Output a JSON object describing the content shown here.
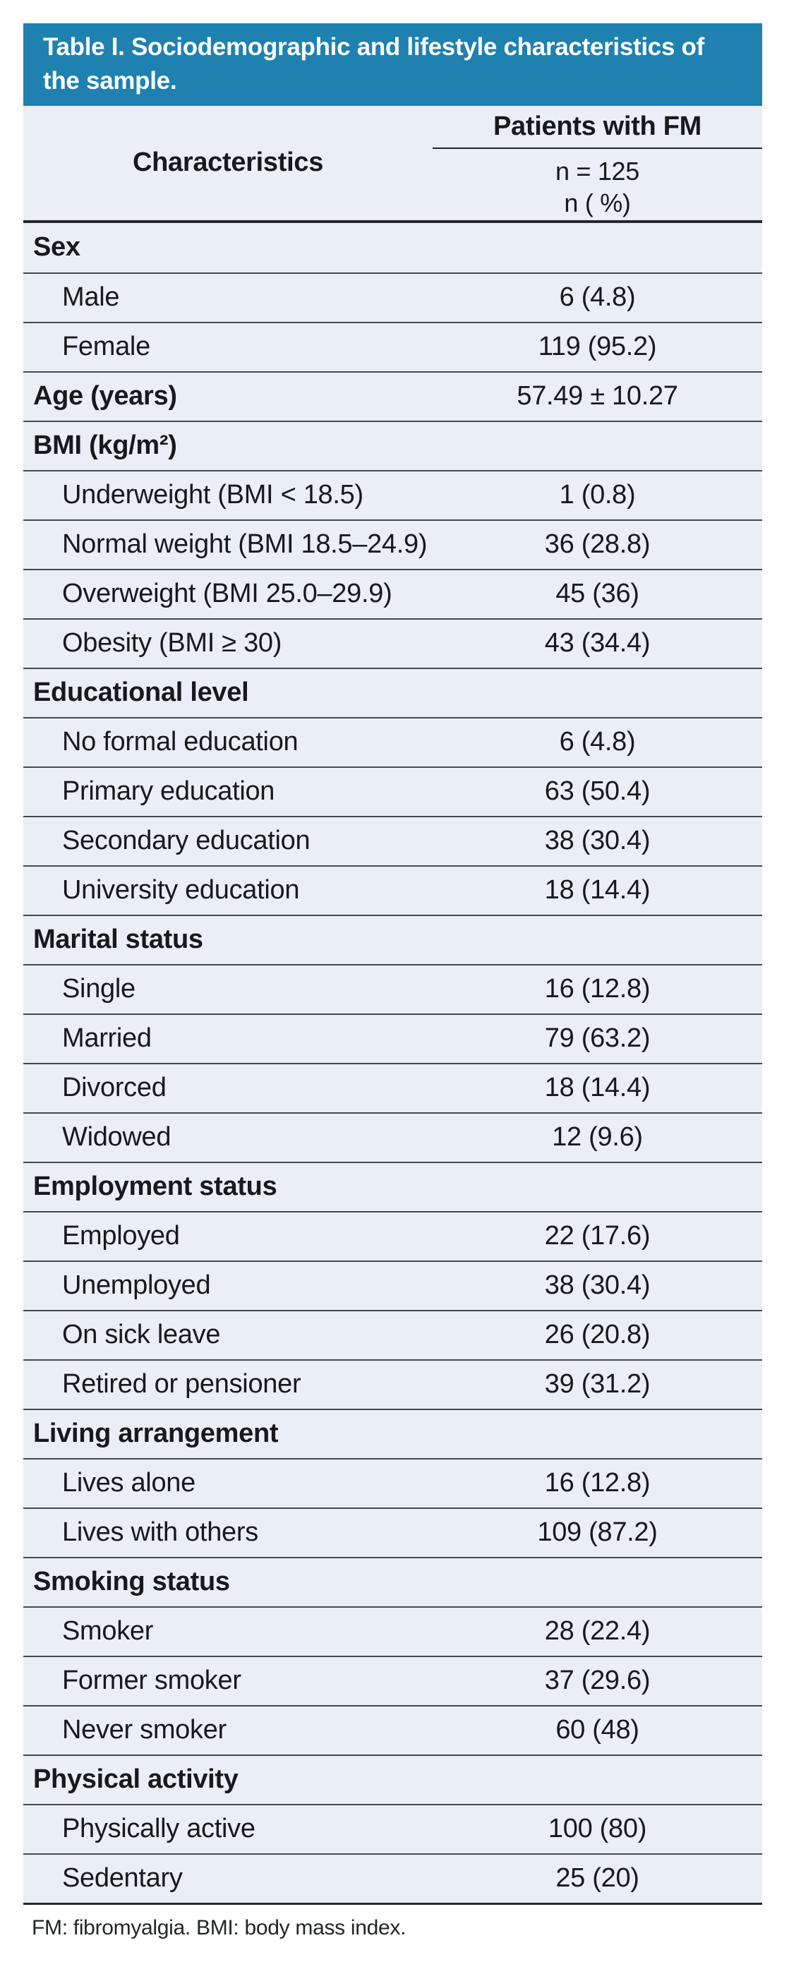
{
  "table": {
    "title": "Table I. Sociodemographic and lifestyle characteristics of the sample.",
    "header": {
      "characteristics_label": "Characteristics",
      "group_label": "Patients with FM",
      "subline1": "n = 125",
      "subline2": "n ( %)"
    },
    "rows": [
      {
        "type": "section",
        "label": "Sex",
        "value": ""
      },
      {
        "type": "data",
        "label": "Male",
        "value": "6 (4.8)"
      },
      {
        "type": "data",
        "label": "Female",
        "value": "119 (95.2)"
      },
      {
        "type": "section",
        "label": "Age (years)",
        "value": "57.49 ± 10.27"
      },
      {
        "type": "section",
        "label": "BMI (kg/m²)",
        "value": ""
      },
      {
        "type": "data",
        "label": "Underweight (BMI < 18.5)",
        "value": "1 (0.8)"
      },
      {
        "type": "data",
        "label": "Normal weight (BMI 18.5–24.9)",
        "value": "36 (28.8)"
      },
      {
        "type": "data",
        "label": "Overweight (BMI 25.0–29.9)",
        "value": "45 (36)"
      },
      {
        "type": "data",
        "label": "Obesity (BMI ≥ 30)",
        "value": "43 (34.4)"
      },
      {
        "type": "section",
        "label": "Educational level",
        "value": ""
      },
      {
        "type": "data",
        "label": "No formal education",
        "value": "6 (4.8)"
      },
      {
        "type": "data",
        "label": "Primary education",
        "value": "63 (50.4)"
      },
      {
        "type": "data",
        "label": "Secondary education",
        "value": "38 (30.4)"
      },
      {
        "type": "data",
        "label": "University education",
        "value": "18 (14.4)"
      },
      {
        "type": "section",
        "label": "Marital status",
        "value": ""
      },
      {
        "type": "data",
        "label": "Single",
        "value": "16 (12.8)"
      },
      {
        "type": "data",
        "label": "Married",
        "value": "79 (63.2)"
      },
      {
        "type": "data",
        "label": "Divorced",
        "value": "18 (14.4)"
      },
      {
        "type": "data",
        "label": "Widowed",
        "value": "12 (9.6)"
      },
      {
        "type": "section",
        "label": "Employment status",
        "value": ""
      },
      {
        "type": "data",
        "label": "Employed",
        "value": "22 (17.6)"
      },
      {
        "type": "data",
        "label": "Unemployed",
        "value": "38 (30.4)"
      },
      {
        "type": "data",
        "label": "On sick leave",
        "value": "26 (20.8)"
      },
      {
        "type": "data",
        "label": "Retired or pensioner",
        "value": "39 (31.2)"
      },
      {
        "type": "section",
        "label": "Living arrangement",
        "value": ""
      },
      {
        "type": "data",
        "label": "Lives alone",
        "value": "16 (12.8)"
      },
      {
        "type": "data",
        "label": "Lives with others",
        "value": "109 (87.2)"
      },
      {
        "type": "section",
        "label": "Smoking status",
        "value": ""
      },
      {
        "type": "data",
        "label": "Smoker",
        "value": "28 (22.4)"
      },
      {
        "type": "data",
        "label": "Former smoker",
        "value": "37 (29.6)"
      },
      {
        "type": "data",
        "label": "Never smoker",
        "value": "60 (48)"
      },
      {
        "type": "section",
        "label": "Physical activity",
        "value": ""
      },
      {
        "type": "data",
        "label": "Physically active",
        "value": "100 (80)"
      },
      {
        "type": "data",
        "label": "Sedentary",
        "value": "25 (20)"
      }
    ],
    "footnote": "FM: fibromyalgia. BMI: body mass index.",
    "colors": {
      "header_bg": "#1e81af",
      "row_bg": "#eaeef6",
      "line": "#45494f",
      "thick_line": "#24272b",
      "title_text": "#ffffff"
    }
  }
}
